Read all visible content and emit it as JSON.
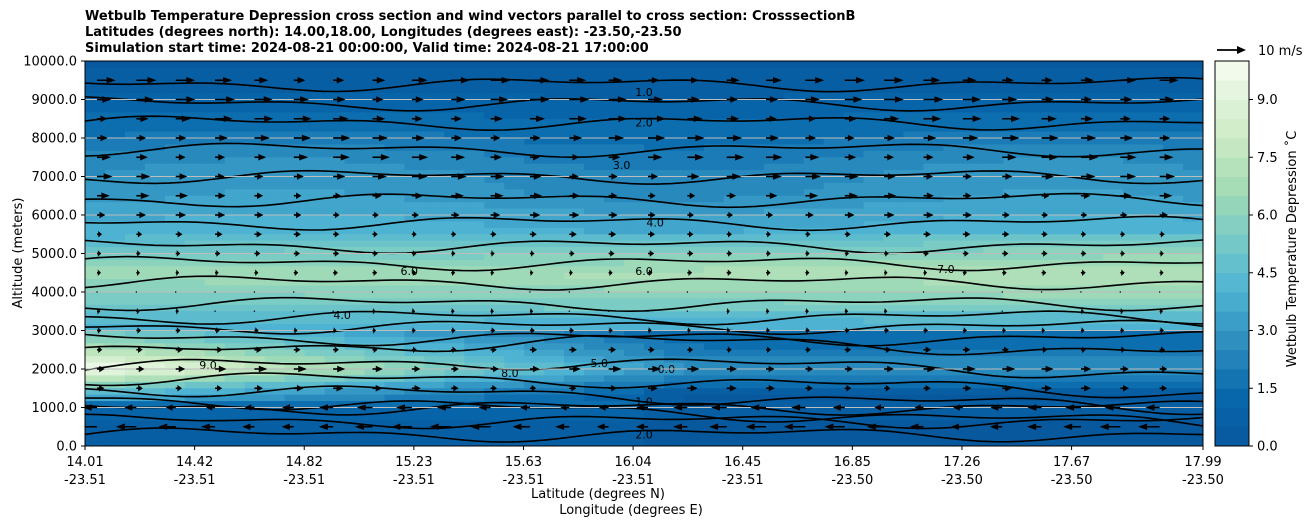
{
  "chart_data": {
    "type": "heatmap",
    "title_lines": [
      "Wetbulb Temperature Depression cross section and wind vectors parallel to cross section: CrosssectionB",
      "Latitudes (degrees north): 14.00,18.00, Longitudes (degrees east): -23.50,-23.50",
      "Simulation start time: 2024-08-21 00:00:00, Valid time: 2024-08-21 17:00:00"
    ],
    "ylabel": "Altitude (meters)",
    "xlabel_lines": [
      "Latitude (degrees N)",
      "Longitude (degrees E)"
    ],
    "ylim": [
      0,
      10000
    ],
    "y_ticks": [
      "0.0",
      "1000.0",
      "2000.0",
      "3000.0",
      "4000.0",
      "5000.0",
      "6000.0",
      "7000.0",
      "8000.0",
      "9000.0",
      "10000.0"
    ],
    "x_ticks": [
      {
        "lat": "14.01",
        "lon": "-23.51"
      },
      {
        "lat": "14.42",
        "lon": "-23.51"
      },
      {
        "lat": "14.82",
        "lon": "-23.51"
      },
      {
        "lat": "15.23",
        "lon": "-23.51"
      },
      {
        "lat": "15.63",
        "lon": "-23.51"
      },
      {
        "lat": "16.04",
        "lon": "-23.51"
      },
      {
        "lat": "16.45",
        "lon": "-23.51"
      },
      {
        "lat": "16.85",
        "lon": "-23.50"
      },
      {
        "lat": "17.26",
        "lon": "-23.50"
      },
      {
        "lat": "17.67",
        "lon": "-23.50"
      },
      {
        "lat": "17.99",
        "lon": "-23.50"
      }
    ],
    "grid": true,
    "colorbar": {
      "label": "Wetbulb Temperature Depression ˚C",
      "ticks": [
        "0.0",
        "1.5",
        "3.0",
        "4.5",
        "6.0",
        "7.5",
        "9.0"
      ],
      "range": [
        0,
        10
      ],
      "colormap": "GnBu_r",
      "low_color": "#08589e",
      "high_color": "#f7fcf0"
    },
    "quiver_key": {
      "label": "10 m/s",
      "speed": 10
    },
    "field_profile": {
      "altitude": [
        0,
        500,
        1000,
        1500,
        2000,
        2500,
        3000,
        3500,
        4000,
        4500,
        5000,
        5500,
        6000,
        6500,
        7000,
        7500,
        8000,
        8500,
        9000,
        9500,
        10000
      ],
      "dry_layer_value": [
        0.5,
        0.8,
        1.5,
        4.0,
        8.5,
        6.0,
        4.0,
        5.0,
        6.0,
        6.8,
        5.5,
        4.2,
        3.8,
        3.2,
        3.0,
        2.6,
        2.0,
        1.6,
        1.1,
        0.7,
        0.4
      ]
    },
    "contour_labels": [
      "0.0",
      "1.0",
      "2.0",
      "3.0",
      "4.0",
      "5.0",
      "6.0",
      "7.0",
      "8.0",
      "9.0"
    ],
    "wind": {
      "rows_altitude": [
        500,
        1000,
        1500,
        2000,
        2500,
        3000,
        3500,
        4000,
        4500,
        5000,
        5500,
        6000,
        6500,
        7000,
        7500,
        8000,
        8500,
        9000,
        9500
      ],
      "speed_ms": [
        -7,
        -5,
        3,
        4,
        2,
        1,
        0.5,
        0.3,
        1,
        1.5,
        2,
        3,
        4,
        5,
        5.5,
        5.5,
        6,
        6.5,
        6.5
      ]
    }
  }
}
